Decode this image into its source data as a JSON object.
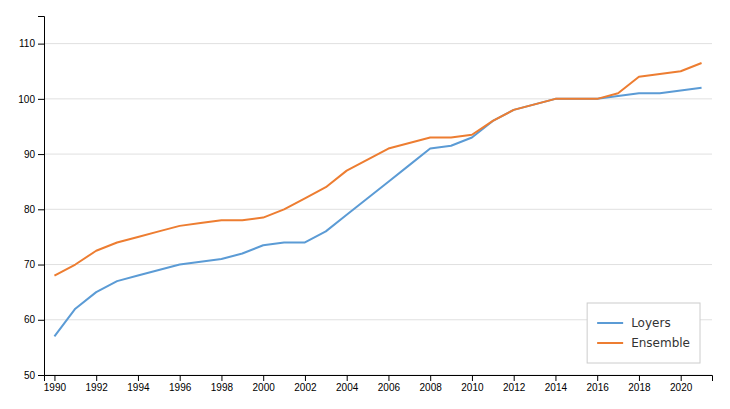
{
  "chart_data": {
    "type": "line",
    "x": [
      1990,
      1991,
      1992,
      1993,
      1994,
      1995,
      1996,
      1997,
      1998,
      1999,
      2000,
      2001,
      2002,
      2003,
      2004,
      2005,
      2006,
      2007,
      2008,
      2009,
      2010,
      2011,
      2012,
      2013,
      2014,
      2015,
      2016,
      2017,
      2018,
      2019,
      2020,
      2021
    ],
    "series": [
      {
        "name": "Loyers",
        "color": "#5B9BD5",
        "values": [
          57,
          62,
          65,
          67,
          68,
          69,
          70,
          70.5,
          71,
          72,
          73.5,
          74,
          74,
          76,
          79,
          82,
          85,
          88,
          91,
          91.5,
          93,
          96,
          98,
          99,
          100,
          100,
          100,
          100.5,
          101,
          101,
          101.5,
          102
        ]
      },
      {
        "name": "Ensemble",
        "color": "#ED7D31",
        "values": [
          68,
          70,
          72.5,
          74,
          75,
          76,
          77,
          77.5,
          78,
          78,
          78.5,
          80,
          82,
          84,
          87,
          89,
          91,
          92,
          93,
          93,
          93.5,
          96,
          98,
          99,
          100,
          100,
          100,
          101,
          104,
          104.5,
          105,
          106.5
        ]
      }
    ],
    "xlim": [
      1989.5,
      2021.5
    ],
    "xticks": [
      1990,
      1992,
      1994,
      1996,
      1998,
      2000,
      2002,
      2004,
      2006,
      2008,
      2010,
      2012,
      2014,
      2016,
      2018,
      2020
    ],
    "ylim": [
      50,
      115
    ],
    "yticks": [
      50,
      60,
      70,
      80,
      90,
      100,
      110
    ],
    "grid": "y",
    "legend": "lower right"
  }
}
